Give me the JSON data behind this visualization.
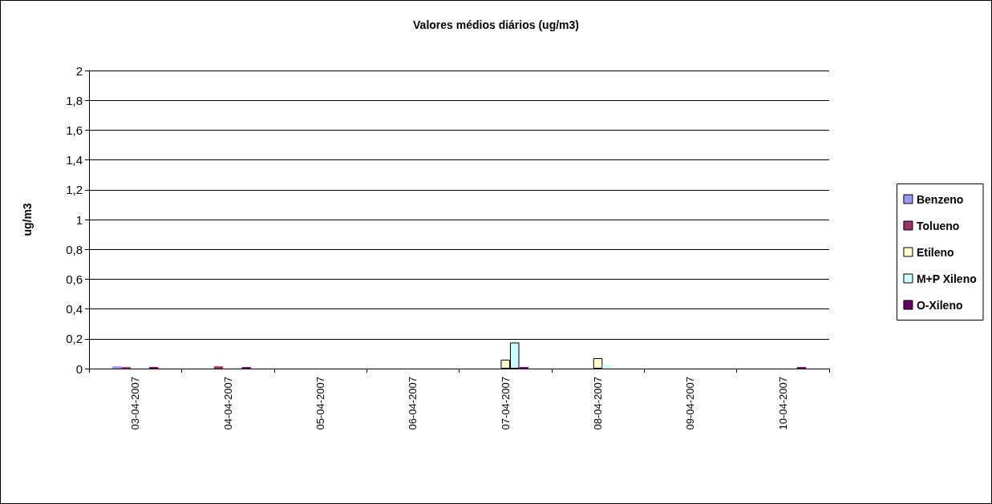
{
  "chart_data": {
    "type": "bar",
    "title": "Valores médios diários (ug/m3)",
    "ylabel": "ug/m3",
    "categories": [
      "03-04-2007",
      "04-04-2007",
      "05-04-2007",
      "06-04-2007",
      "07-04-2007",
      "08-04-2007",
      "09-04-2007",
      "10-04-2007"
    ],
    "series": [
      {
        "name": "Benzeno",
        "color": "#9999ff",
        "values": [
          0.015,
          null,
          null,
          null,
          null,
          null,
          null,
          null
        ]
      },
      {
        "name": "Tolueno",
        "color": "#993366",
        "values": [
          0.01,
          0.015,
          null,
          null,
          null,
          null,
          null,
          null
        ]
      },
      {
        "name": "Etileno",
        "color": "#ffffcc",
        "values": [
          null,
          0.01,
          null,
          null,
          0.06,
          0.07,
          null,
          null
        ]
      },
      {
        "name": "M+P Xileno",
        "color": "#ccffff",
        "values": [
          null,
          0.01,
          null,
          null,
          0.175,
          0.025,
          null,
          null
        ]
      },
      {
        "name": "O-Xileno",
        "color": "#660066",
        "values": [
          0.01,
          0.01,
          null,
          null,
          0.01,
          null,
          null,
          0.01
        ]
      }
    ],
    "ylim": [
      0,
      2
    ],
    "yticks": [
      {
        "value": 0,
        "label": "0"
      },
      {
        "value": 0.2,
        "label": "0,2"
      },
      {
        "value": 0.4,
        "label": "0,4"
      },
      {
        "value": 0.6,
        "label": "0,6"
      },
      {
        "value": 0.8,
        "label": "0,8"
      },
      {
        "value": 1,
        "label": "1"
      },
      {
        "value": 1.2,
        "label": "1,2"
      },
      {
        "value": 1.4,
        "label": "1,4"
      },
      {
        "value": 1.6,
        "label": "1,6"
      },
      {
        "value": 1.8,
        "label": "1,8"
      },
      {
        "value": 2,
        "label": "2"
      }
    ],
    "grid": "y",
    "legend": "right"
  }
}
